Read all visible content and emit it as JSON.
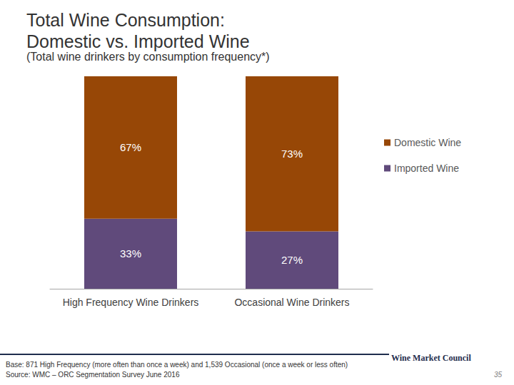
{
  "chart_data": {
    "type": "bar",
    "stacked": true,
    "title": "Total Wine Consumption:\nDomestic vs. Imported Wine",
    "subtitle": "(Total wine drinkers by consumption frequency*)",
    "categories": [
      "High Frequency Wine Drinkers",
      "Occasional Wine Drinkers"
    ],
    "series": [
      {
        "name": "Domestic Wine",
        "color": "#974706",
        "values": [
          67,
          73
        ],
        "value_labels": [
          "67%",
          "73%"
        ]
      },
      {
        "name": "Imported Wine",
        "color": "#604a7b",
        "values": [
          33,
          27
        ],
        "value_labels": [
          "33%",
          "27%"
        ]
      }
    ],
    "ylim": [
      0,
      100
    ],
    "data_labels": true,
    "tick_labels": "x",
    "grid": false,
    "legend": "right",
    "annotations": [
      "Base: 871 High Frequency (more often than once a week) and 1,539 Occasional (once a week or less often)",
      "Source: WMC – ORC Segmentation Survey June 2016",
      "Wine Market Council",
      "35"
    ]
  }
}
